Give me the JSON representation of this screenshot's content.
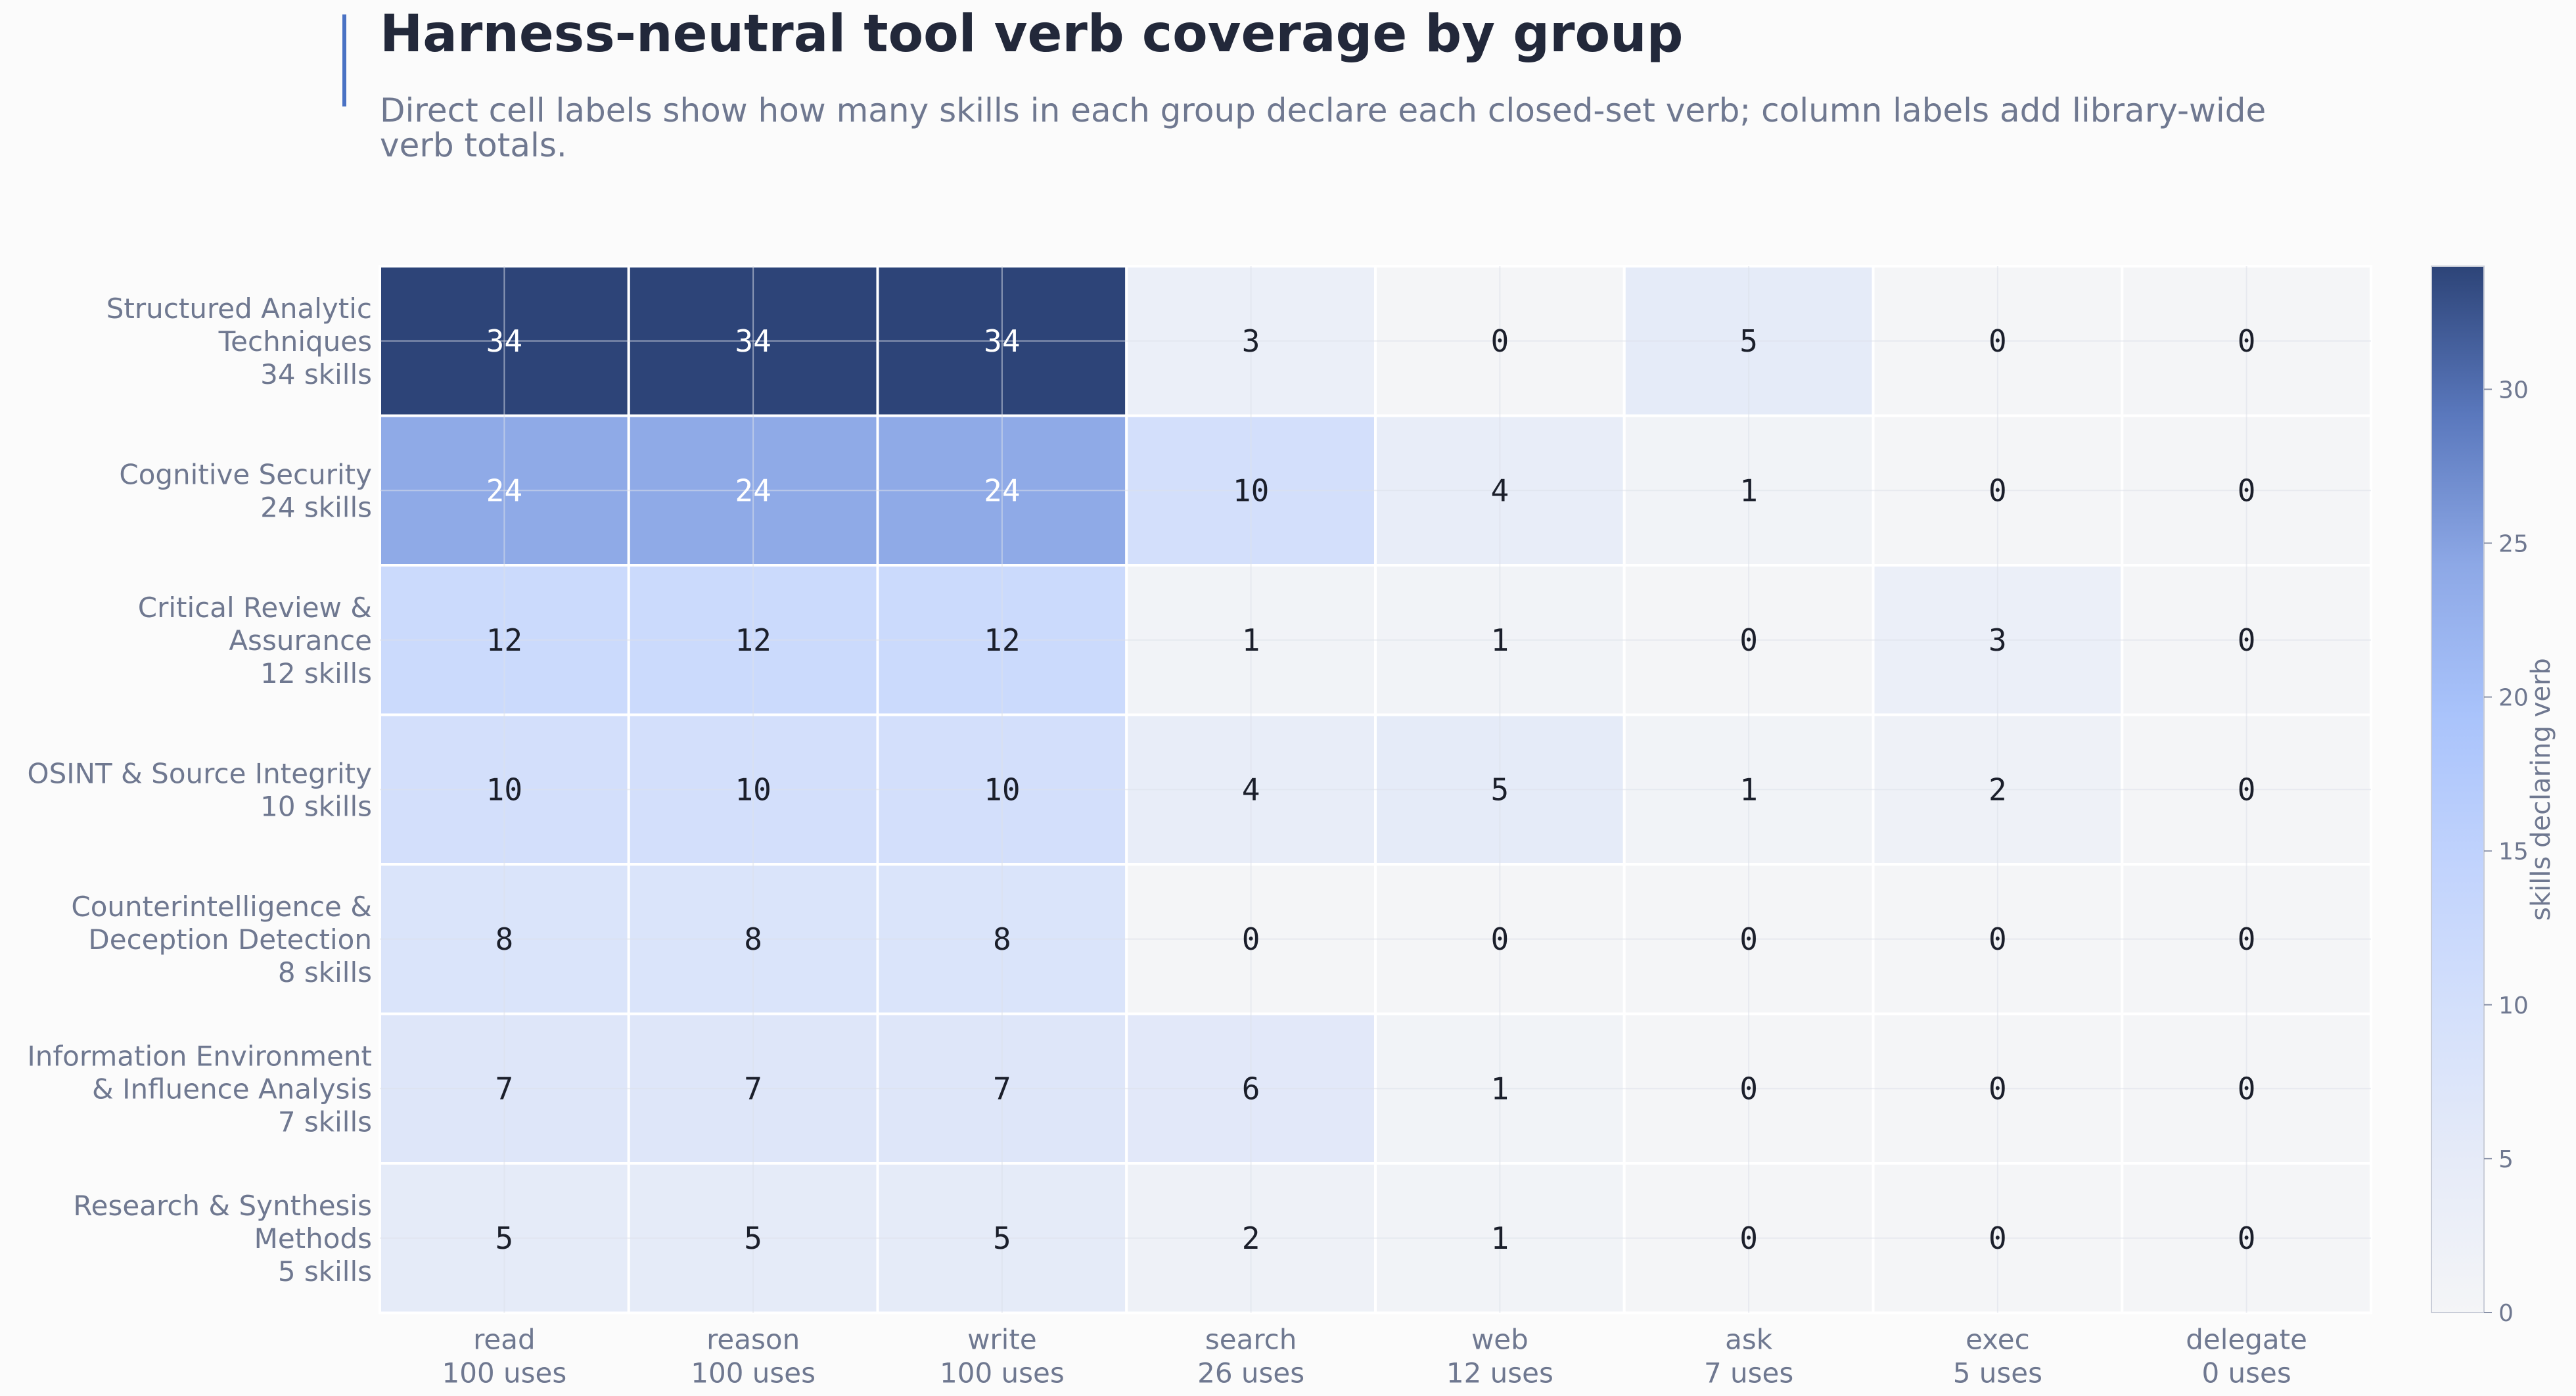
{
  "chart_data": {
    "type": "heatmap",
    "title": "Harness-neutral tool verb coverage by group",
    "subtitle_lines": [
      "Direct cell labels show how many skills in each group declare each closed-set verb; column labels add library-wide",
      "verb totals."
    ],
    "columns": [
      {
        "verb": "read",
        "uses": "100 uses"
      },
      {
        "verb": "reason",
        "uses": "100 uses"
      },
      {
        "verb": "write",
        "uses": "100 uses"
      },
      {
        "verb": "search",
        "uses": "26 uses"
      },
      {
        "verb": "web",
        "uses": "12 uses"
      },
      {
        "verb": "ask",
        "uses": "7 uses"
      },
      {
        "verb": "exec",
        "uses": "5 uses"
      },
      {
        "verb": "delegate",
        "uses": "0 uses"
      }
    ],
    "rows": [
      {
        "label_lines": [
          "Structured Analytic",
          "Techniques",
          "34 skills"
        ],
        "values": [
          34,
          34,
          34,
          3,
          0,
          5,
          0,
          0
        ]
      },
      {
        "label_lines": [
          "Cognitive Security",
          "24 skills"
        ],
        "values": [
          24,
          24,
          24,
          10,
          4,
          1,
          0,
          0
        ]
      },
      {
        "label_lines": [
          "Critical Review &",
          "Assurance",
          "12 skills"
        ],
        "values": [
          12,
          12,
          12,
          1,
          1,
          0,
          3,
          0
        ]
      },
      {
        "label_lines": [
          "OSINT & Source Integrity",
          "10 skills"
        ],
        "values": [
          10,
          10,
          10,
          4,
          5,
          1,
          2,
          0
        ]
      },
      {
        "label_lines": [
          "Counterintelligence &",
          "Deception Detection",
          "8 skills"
        ],
        "values": [
          8,
          8,
          8,
          0,
          0,
          0,
          0,
          0
        ]
      },
      {
        "label_lines": [
          "Information Environment",
          "& Influence Analysis",
          "7 skills"
        ],
        "values": [
          7,
          7,
          7,
          6,
          1,
          0,
          0,
          0
        ]
      },
      {
        "label_lines": [
          "Research & Synthesis",
          "Methods",
          "5 skills"
        ],
        "values": [
          5,
          5,
          5,
          2,
          1,
          0,
          0,
          0
        ]
      }
    ],
    "colorbar": {
      "label": "skills declaring verb",
      "ticks": [
        0,
        5,
        10,
        15,
        20,
        25,
        30
      ],
      "range": [
        0,
        34
      ]
    },
    "colors": {
      "scale": [
        "#f4f5f7",
        "#e6ebf8",
        "#d4e0fb",
        "#c1d3fd",
        "#a9c3fb",
        "#8da8e6",
        "#5a78bd",
        "#2d4478"
      ],
      "accent_bar": "#4a72c4",
      "label_dark": "#1b1f2b",
      "label_light": "#ffffff"
    }
  }
}
